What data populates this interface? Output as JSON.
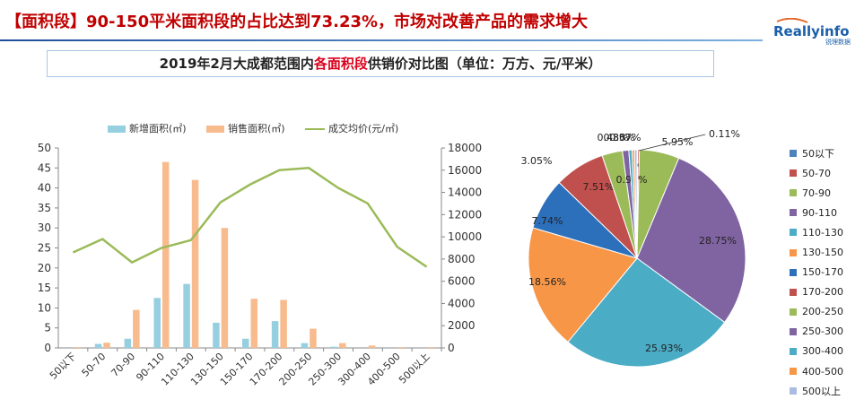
{
  "headline": "【面积段】90-150平米面积段的占比达到73.23%，市场对改善产品的需求增大",
  "logo": {
    "name": "Reallyinfo",
    "subtitle": "锐理数据"
  },
  "title": {
    "pre": "2019年2月大成都范围内",
    "highlight": "各面积段",
    "post": "供销价对比图（单位：万方、元/平米）"
  },
  "colors": {
    "new": "#96cfe0",
    "sold": "#f8bb8e",
    "price": "#9bbb59",
    "brand": "#1a5fa8",
    "headline": "#c00000"
  },
  "chart_data": [
    {
      "type": "bar",
      "legend": [
        "新增面积(㎡)",
        "销售面积(㎡)",
        "成交均价(元/㎡)"
      ],
      "categories": [
        "50以下",
        "50-70",
        "70-90",
        "90-110",
        "110-130",
        "130-150",
        "150-170",
        "170-200",
        "200-250",
        "250-300",
        "300-400",
        "400-500",
        "500以上"
      ],
      "series": [
        {
          "name": "新增面积(㎡)",
          "type": "bar",
          "axis": "left",
          "values": [
            0,
            1,
            2.3,
            12.5,
            16,
            6.3,
            2.3,
            6.7,
            1.2,
            0.3,
            0,
            0,
            0
          ]
        },
        {
          "name": "销售面积(㎡)",
          "type": "bar",
          "axis": "left",
          "values": [
            0.2,
            1.3,
            9.5,
            46.5,
            42,
            30,
            12.3,
            12,
            4.8,
            1.2,
            0.6,
            0.2,
            0.2
          ]
        },
        {
          "name": "成交均价(元/㎡)",
          "type": "line",
          "axis": "right",
          "values": [
            8600,
            9800,
            7700,
            9000,
            9700,
            13100,
            14700,
            16000,
            16200,
            14400,
            13000,
            9100,
            7300
          ]
        }
      ],
      "y_left": {
        "min": 0,
        "max": 50,
        "ticks": [
          0,
          5,
          10,
          15,
          20,
          25,
          30,
          35,
          40,
          45,
          50
        ]
      },
      "y_right": {
        "min": 0,
        "max": 18000,
        "ticks": [
          0,
          2000,
          4000,
          6000,
          8000,
          10000,
          12000,
          14000,
          16000,
          18000
        ]
      },
      "grid": false,
      "legend_position": "top"
    },
    {
      "type": "pie",
      "legend_position": "right",
      "slices": [
        {
          "label": "50以下",
          "value": 0.11,
          "label_text": "0.11%",
          "color": "#4f81bd"
        },
        {
          "label": "50-70",
          "value": 0.24,
          "label_text": "0.24%",
          "color": "#c0504d"
        },
        {
          "label": "70-90",
          "value": 5.95,
          "label_text": "5.95%",
          "color": "#9bbb59"
        },
        {
          "label": "90-110",
          "value": 28.75,
          "label_text": "28.75%",
          "color": "#8064a2"
        },
        {
          "label": "110-130",
          "value": 25.93,
          "label_text": "25.93%",
          "color": "#4bacc6"
        },
        {
          "label": "130-150",
          "value": 18.56,
          "label_text": "18.56%",
          "color": "#f79646"
        },
        {
          "label": "150-170",
          "value": 7.74,
          "label_text": "7.74%",
          "color": "#2c6fbb"
        },
        {
          "label": "170-200",
          "value": 7.51,
          "label_text": "7.51%",
          "color": "#c0504d"
        },
        {
          "label": "200-250",
          "value": 3.05,
          "label_text": "3.05%",
          "color": "#9bbb59"
        },
        {
          "label": "250-300",
          "value": 0.95,
          "label_text": "0.95%",
          "color": "#8064a2"
        },
        {
          "label": "300-400",
          "value": 0.48,
          "label_text": "0.48%",
          "color": "#4bacc6"
        },
        {
          "label": "400-500",
          "value": 0.36,
          "label_text": "0.36%",
          "color": "#f79646"
        },
        {
          "label": "500以上",
          "value": 0.37,
          "label_text": "0.37%",
          "color": "#aabde0"
        }
      ]
    }
  ]
}
